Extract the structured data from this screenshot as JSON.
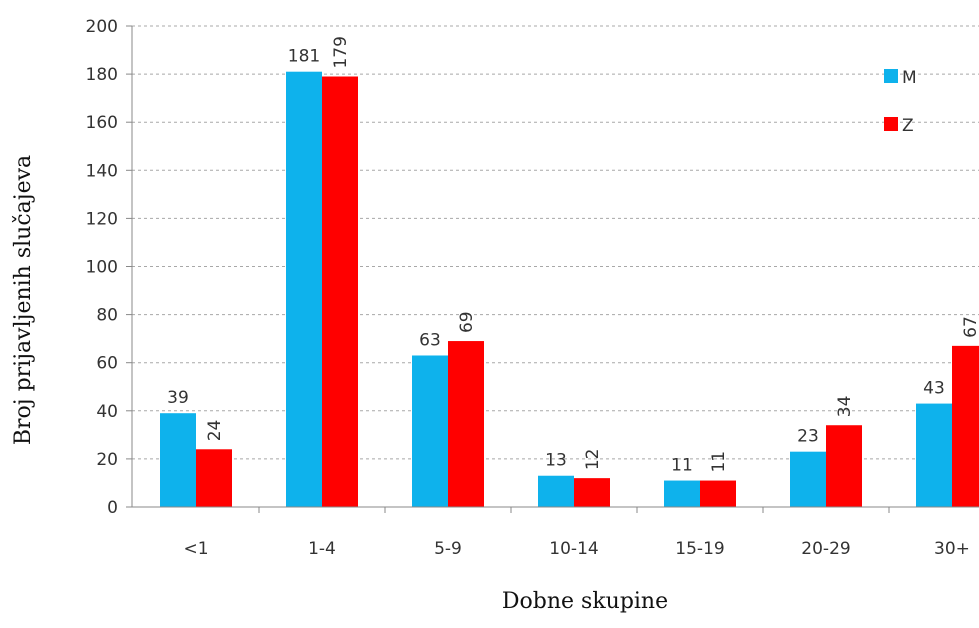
{
  "chart_data": {
    "type": "bar",
    "categories": [
      "<1",
      "1-4",
      "5-9",
      "10-14",
      "15-19",
      "20-29",
      "30+"
    ],
    "series": [
      {
        "name": "M",
        "color": "#0eb2ec",
        "values": [
          39,
          181,
          63,
          13,
          11,
          23,
          43
        ]
      },
      {
        "name": "Z",
        "color": "#ff0000",
        "values": [
          24,
          179,
          69,
          12,
          11,
          34,
          67
        ]
      }
    ],
    "title": "",
    "xlabel": "Dobne skupine",
    "ylabel": "Broj prijavljenih slučajeva",
    "ylim": [
      0,
      200
    ],
    "yticks": [
      0,
      20,
      40,
      60,
      80,
      100,
      120,
      140,
      160,
      180,
      200
    ],
    "grid": "horizontal dashed",
    "legend_position": "top-right",
    "data_labels": true
  }
}
